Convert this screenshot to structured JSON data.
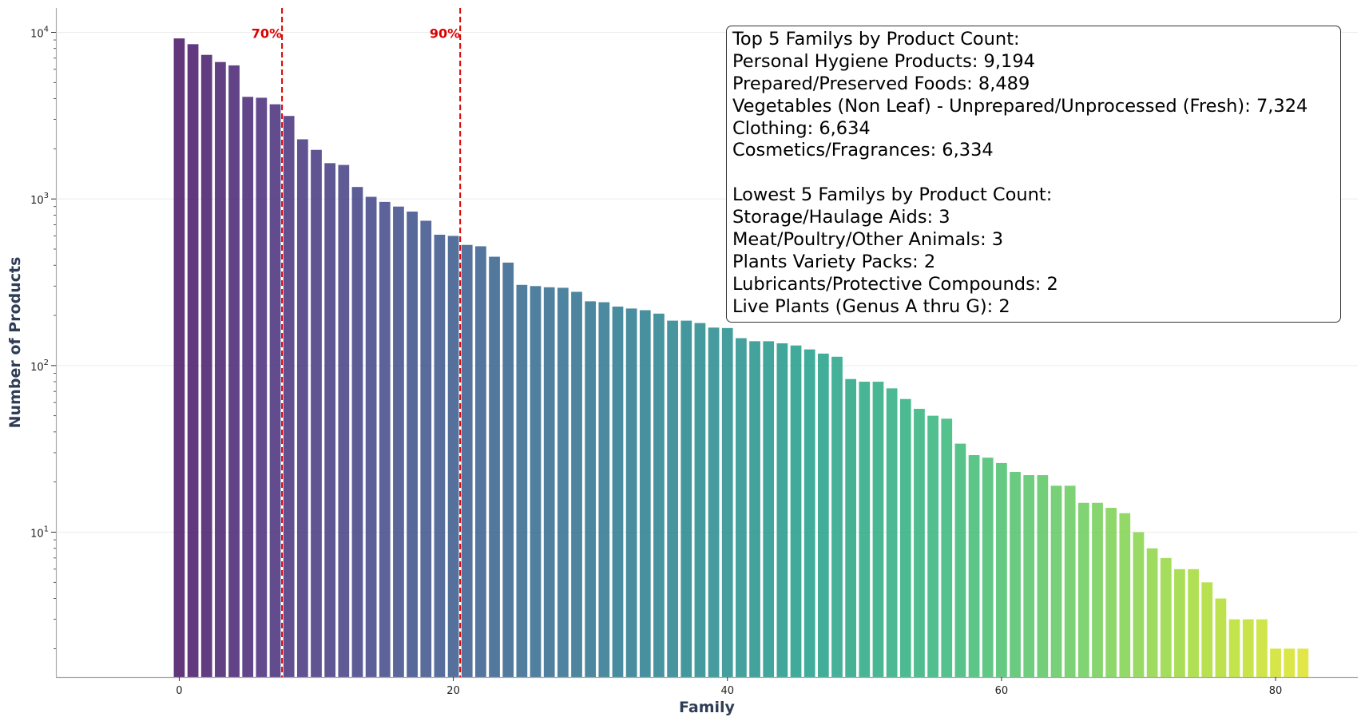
{
  "chart_data": {
    "type": "bar",
    "scale": "log",
    "xlabel": "Family",
    "ylabel": "Number of Products",
    "xlim": [
      -9,
      86
    ],
    "ylim": [
      1.35,
      14000
    ],
    "xticks": [
      0,
      20,
      40,
      60,
      80
    ],
    "yticks": [
      {
        "value": 10,
        "base": "10",
        "exp": "1"
      },
      {
        "value": 100,
        "base": "10",
        "exp": "2"
      },
      {
        "value": 1000,
        "base": "10",
        "exp": "3"
      },
      {
        "value": 10000,
        "base": "10",
        "exp": "4"
      }
    ],
    "grid": "horizontal",
    "colormap": "viridis",
    "values": [
      9194,
      8489,
      7324,
      6634,
      6334,
      4100,
      4050,
      3700,
      3150,
      2280,
      1970,
      1640,
      1600,
      1180,
      1030,
      960,
      900,
      840,
      740,
      610,
      600,
      530,
      520,
      450,
      415,
      305,
      300,
      295,
      293,
      277,
      243,
      240,
      226,
      220,
      215,
      205,
      186,
      186,
      180,
      169,
      168,
      146,
      140,
      140,
      136,
      132,
      125,
      118,
      113,
      83,
      80,
      80,
      73,
      63,
      55,
      50,
      48,
      34,
      29,
      28,
      26,
      23,
      22,
      22,
      19,
      19,
      15,
      15,
      14,
      13,
      10,
      8,
      7,
      6,
      6,
      5,
      4,
      3,
      3,
      3,
      2,
      2,
      2
    ],
    "threshold_lines": [
      {
        "x": 7.5,
        "label": "70%",
        "color": "#dd0000"
      },
      {
        "x": 20.5,
        "label": "90%",
        "color": "#dd0000"
      }
    ]
  },
  "summary": {
    "top_title": "Top 5 Familys by Product Count:",
    "top": [
      "Personal Hygiene Products: 9,194",
      "Prepared/Preserved Foods: 8,489",
      "Vegetables (Non Leaf) - Unprepared/Unprocessed (Fresh): 7,324",
      "Clothing: 6,634",
      "Cosmetics/Fragrances: 6,334"
    ],
    "bottom_title": "Lowest 5 Familys by Product Count:",
    "bottom": [
      "Storage/Haulage Aids: 3",
      "Meat/Poultry/Other Animals: 3",
      "Plants Variety Packs: 2",
      "Lubricants/Protective Compounds: 2",
      "Live Plants (Genus A thru G): 2"
    ]
  }
}
